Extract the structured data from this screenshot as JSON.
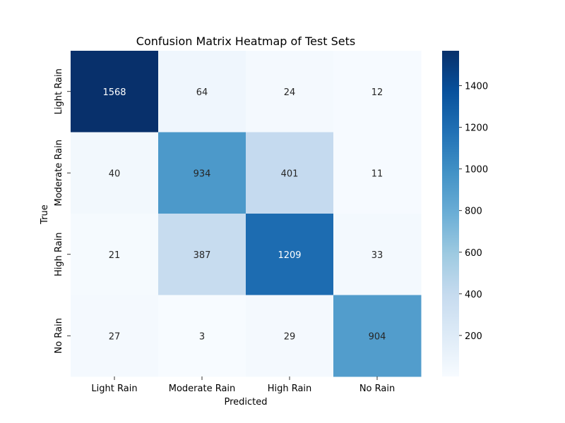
{
  "chart_data": {
    "type": "heatmap",
    "title": "Confusion Matrix Heatmap of Test Sets",
    "xlabel": "Predicted",
    "ylabel": "True",
    "x_categories": [
      "Light Rain",
      "Moderate Rain",
      "High Rain",
      "No Rain"
    ],
    "y_categories": [
      "Light Rain",
      "Moderate Rain",
      "High Rain",
      "No Rain"
    ],
    "values": [
      [
        1568,
        64,
        24,
        12
      ],
      [
        40,
        934,
        401,
        11
      ],
      [
        21,
        387,
        1209,
        33
      ],
      [
        27,
        3,
        29,
        904
      ]
    ],
    "colormap": "Blues",
    "colorbar": {
      "min": 3,
      "max": 1568,
      "ticks": [
        200,
        400,
        600,
        800,
        1000,
        1200,
        1400
      ]
    },
    "annotations": true,
    "grid": false
  }
}
